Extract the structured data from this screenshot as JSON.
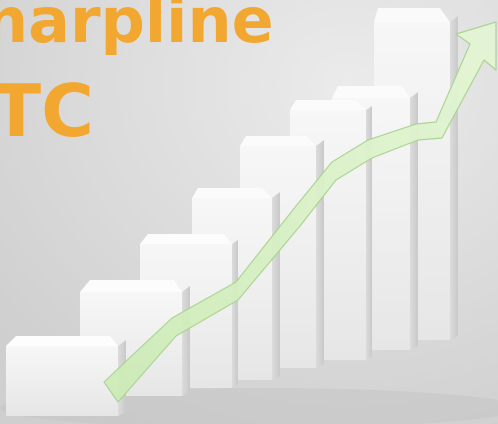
{
  "headline": {
    "line1": "harpline",
    "line2": "TC"
  },
  "colors": {
    "headline": "#f2a731",
    "background": "#dedede",
    "block_front": "#f1f1f1",
    "block_top": "#fbfbfb",
    "block_side": "#d3d3d3",
    "arrow": "#d6efc2",
    "arrow_edge": "#a9d390"
  },
  "icons": [
    "rising-trend-arrow-icon"
  ]
}
